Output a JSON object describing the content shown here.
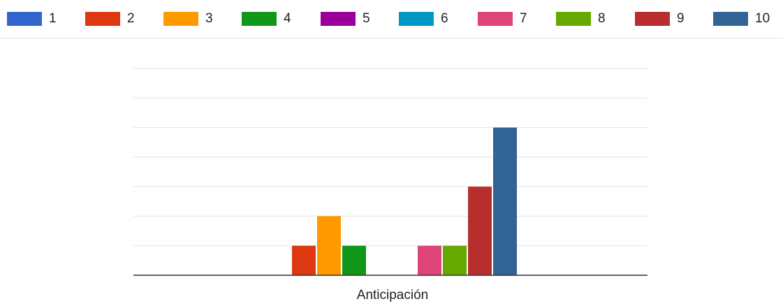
{
  "chart_data": {
    "type": "bar",
    "categories": [
      "Anticipación"
    ],
    "series": [
      {
        "name": "1",
        "values": [
          0
        ],
        "color": "#3366cc"
      },
      {
        "name": "2",
        "values": [
          1
        ],
        "color": "#dc3912"
      },
      {
        "name": "3",
        "values": [
          2
        ],
        "color": "#ff9900"
      },
      {
        "name": "4",
        "values": [
          1
        ],
        "color": "#109618"
      },
      {
        "name": "5",
        "values": [
          0
        ],
        "color": "#990099"
      },
      {
        "name": "6",
        "values": [
          0
        ],
        "color": "#0099c6"
      },
      {
        "name": "7",
        "values": [
          1
        ],
        "color": "#dd4477"
      },
      {
        "name": "8",
        "values": [
          1
        ],
        "color": "#66aa00"
      },
      {
        "name": "9",
        "values": [
          3
        ],
        "color": "#b82e2e"
      },
      {
        "name": "10",
        "values": [
          5
        ],
        "color": "#316395"
      }
    ],
    "title": "",
    "xlabel": "",
    "ylabel": "",
    "ylim": [
      0,
      7
    ],
    "grid": true,
    "legend_position": "top"
  }
}
